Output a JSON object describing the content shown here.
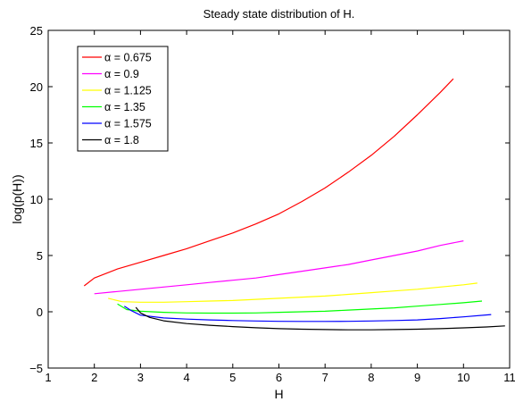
{
  "chart_data": {
    "type": "line",
    "title": "Steady state distribution of H.",
    "xlabel": "H",
    "ylabel": "log(p(H))",
    "xlim": [
      1,
      11
    ],
    "ylim": [
      -5,
      25
    ],
    "xticks": [
      1,
      2,
      3,
      4,
      5,
      6,
      7,
      8,
      9,
      10,
      11
    ],
    "yticks": [
      -5,
      0,
      5,
      10,
      15,
      20,
      25
    ],
    "xtick_labels": [
      "1",
      "2",
      "3",
      "4",
      "5",
      "6",
      "7",
      "8",
      "9",
      "10",
      "11"
    ],
    "ytick_labels": [
      "−5",
      "0",
      "5",
      "10",
      "15",
      "20",
      "25"
    ],
    "legend_position": "top-left",
    "grid": false,
    "series": [
      {
        "name": "α = 0.675",
        "color": "#ff0000",
        "x": [
          1.78,
          2.0,
          2.5,
          3.0,
          3.5,
          4.0,
          4.5,
          5.0,
          5.5,
          6.0,
          6.5,
          7.0,
          7.5,
          8.0,
          8.5,
          9.0,
          9.5,
          9.78
        ],
        "y": [
          2.3,
          3.0,
          3.8,
          4.4,
          5.0,
          5.6,
          6.3,
          7.0,
          7.8,
          8.7,
          9.8,
          11.0,
          12.4,
          13.9,
          15.6,
          17.5,
          19.5,
          20.7
        ]
      },
      {
        "name": "α = 0.9",
        "color": "#ff00ff",
        "x": [
          2.0,
          2.5,
          3.0,
          3.5,
          4.0,
          4.5,
          5.0,
          5.5,
          6.0,
          6.5,
          7.0,
          7.5,
          8.0,
          8.5,
          9.0,
          9.5,
          10.0
        ],
        "y": [
          1.6,
          1.8,
          2.0,
          2.2,
          2.4,
          2.6,
          2.8,
          3.0,
          3.3,
          3.6,
          3.9,
          4.2,
          4.6,
          5.0,
          5.4,
          5.9,
          6.3
        ]
      },
      {
        "name": "α = 1.125",
        "color": "#ffff00",
        "x": [
          2.3,
          2.6,
          3.0,
          3.5,
          4.0,
          4.5,
          5.0,
          5.5,
          6.0,
          6.5,
          7.0,
          7.5,
          8.0,
          8.5,
          9.0,
          9.5,
          10.0,
          10.3
        ],
        "y": [
          1.2,
          0.9,
          0.85,
          0.85,
          0.9,
          0.95,
          1.0,
          1.1,
          1.2,
          1.3,
          1.4,
          1.55,
          1.7,
          1.85,
          2.0,
          2.2,
          2.4,
          2.55
        ]
      },
      {
        "name": "α = 1.35",
        "color": "#00ff00",
        "x": [
          2.5,
          2.7,
          3.0,
          3.5,
          4.0,
          4.5,
          5.0,
          5.5,
          6.0,
          6.5,
          7.0,
          7.5,
          8.0,
          8.5,
          9.0,
          9.5,
          10.0,
          10.4
        ],
        "y": [
          0.7,
          0.2,
          0.05,
          -0.05,
          -0.1,
          -0.12,
          -0.12,
          -0.1,
          -0.05,
          0.0,
          0.05,
          0.15,
          0.25,
          0.35,
          0.5,
          0.65,
          0.8,
          0.95
        ]
      },
      {
        "name": "α = 1.575",
        "color": "#0000ff",
        "x": [
          2.65,
          2.8,
          3.0,
          3.5,
          4.0,
          4.5,
          5.0,
          5.5,
          6.0,
          6.5,
          7.0,
          7.5,
          8.0,
          8.5,
          9.0,
          9.5,
          10.0,
          10.6
        ],
        "y": [
          0.5,
          0.1,
          -0.3,
          -0.55,
          -0.65,
          -0.72,
          -0.78,
          -0.82,
          -0.85,
          -0.86,
          -0.86,
          -0.85,
          -0.82,
          -0.78,
          -0.72,
          -0.6,
          -0.45,
          -0.25
        ]
      },
      {
        "name": "α = 1.8",
        "color": "#000000",
        "x": [
          2.9,
          3.0,
          3.2,
          3.5,
          4.0,
          4.5,
          5.0,
          5.5,
          6.0,
          6.5,
          7.0,
          7.5,
          8.0,
          8.5,
          9.0,
          9.5,
          10.0,
          10.5,
          10.9
        ],
        "y": [
          0.4,
          -0.1,
          -0.5,
          -0.8,
          -1.05,
          -1.2,
          -1.32,
          -1.42,
          -1.5,
          -1.55,
          -1.58,
          -1.6,
          -1.6,
          -1.58,
          -1.55,
          -1.5,
          -1.43,
          -1.35,
          -1.25
        ]
      }
    ]
  }
}
